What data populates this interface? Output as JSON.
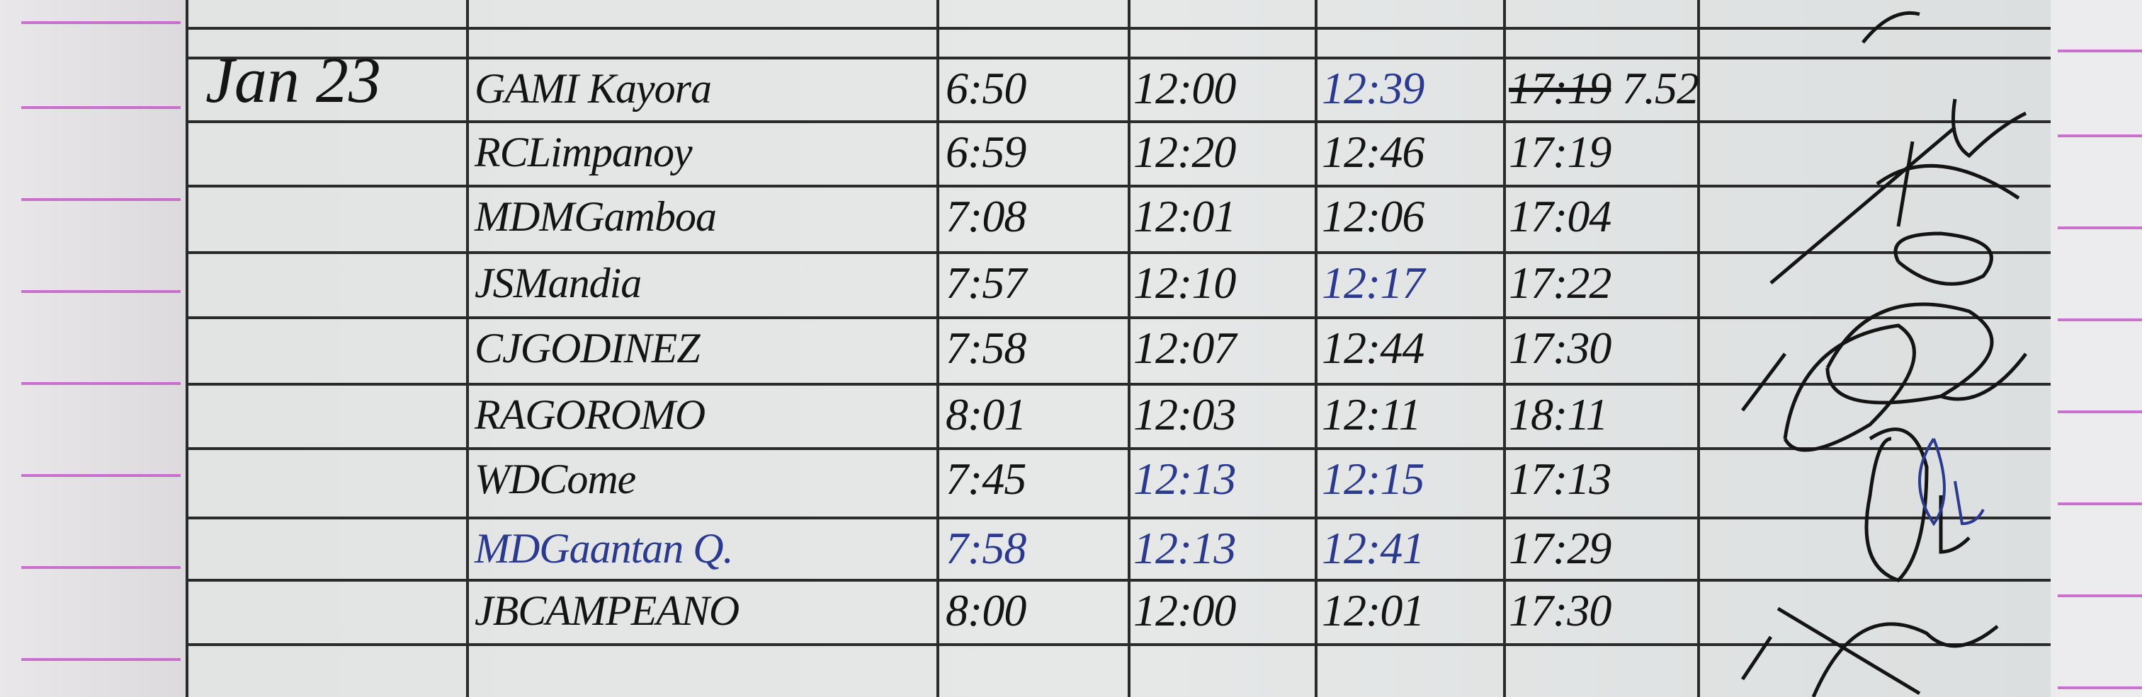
{
  "log": {
    "date": "Jan 23",
    "rows": [
      {
        "name": "GAMI Kayora",
        "time_in": "6:50",
        "lunch_out": "12:00",
        "lunch_in": "12:39",
        "time_out": "17:19",
        "extra": "7.52",
        "ink": {
          "name": "black",
          "time_in": "black",
          "lunch_out": "black",
          "lunch_in": "blue",
          "time_out": "black"
        }
      },
      {
        "name": "RCLimpanoy",
        "time_in": "6:59",
        "lunch_out": "12:20",
        "lunch_in": "12:46",
        "time_out": "17:19",
        "extra": "",
        "ink": {
          "name": "black",
          "time_in": "black",
          "lunch_out": "black",
          "lunch_in": "black",
          "time_out": "black"
        }
      },
      {
        "name": "MDMGamboa",
        "time_in": "7:08",
        "lunch_out": "12:01",
        "lunch_in": "12:06",
        "time_out": "17:04",
        "extra": "",
        "ink": {
          "name": "black",
          "time_in": "black",
          "lunch_out": "black",
          "lunch_in": "black",
          "time_out": "black"
        }
      },
      {
        "name": "JSMandia",
        "time_in": "7:57",
        "lunch_out": "12:10",
        "lunch_in": "12:17",
        "time_out": "17:22",
        "extra": "",
        "ink": {
          "name": "black",
          "time_in": "black",
          "lunch_out": "black",
          "lunch_in": "blue",
          "time_out": "black"
        }
      },
      {
        "name": "CJGODINEZ",
        "time_in": "7:58",
        "lunch_out": "12:07",
        "lunch_in": "12:44",
        "time_out": "17:30",
        "extra": "",
        "ink": {
          "name": "black",
          "time_in": "black",
          "lunch_out": "black",
          "lunch_in": "black",
          "time_out": "black"
        }
      },
      {
        "name": "RAGOROMO",
        "time_in": "8:01",
        "lunch_out": "12:03",
        "lunch_in": "12:11",
        "time_out": "18:11",
        "extra": "",
        "ink": {
          "name": "black",
          "time_in": "black",
          "lunch_out": "black",
          "lunch_in": "black",
          "time_out": "black"
        }
      },
      {
        "name": "WDCome",
        "time_in": "7:45",
        "lunch_out": "12:13",
        "lunch_in": "12:15",
        "time_out": "17:13",
        "extra": "",
        "ink": {
          "name": "black",
          "time_in": "black",
          "lunch_out": "blue",
          "lunch_in": "blue",
          "time_out": "black"
        }
      },
      {
        "name": "MDGaantan Q.",
        "time_in": "7:58",
        "lunch_out": "12:13",
        "lunch_in": "12:41",
        "time_out": "17:29",
        "extra": "",
        "ink": {
          "name": "blue",
          "time_in": "blue",
          "lunch_out": "blue",
          "lunch_in": "blue",
          "time_out": "black"
        }
      },
      {
        "name": "JBCAMPEANO",
        "time_in": "8:00",
        "lunch_out": "12:00",
        "lunch_in": "12:01",
        "time_out": "17:30",
        "extra": "",
        "ink": {
          "name": "black",
          "time_in": "black",
          "lunch_out": "black",
          "lunch_in": "black",
          "time_out": "black"
        }
      }
    ],
    "struck_entries": [
      "rows.0.time_out"
    ]
  },
  "colors": {
    "black_ink": "#141414",
    "blue_ink": "#2b3a8f",
    "margin_lines": "#c45ac8",
    "paper": "#e4e6e6",
    "rules": "#2a2a2a"
  },
  "icons": {
    "signatures": "handwritten-signature-scribbles"
  }
}
